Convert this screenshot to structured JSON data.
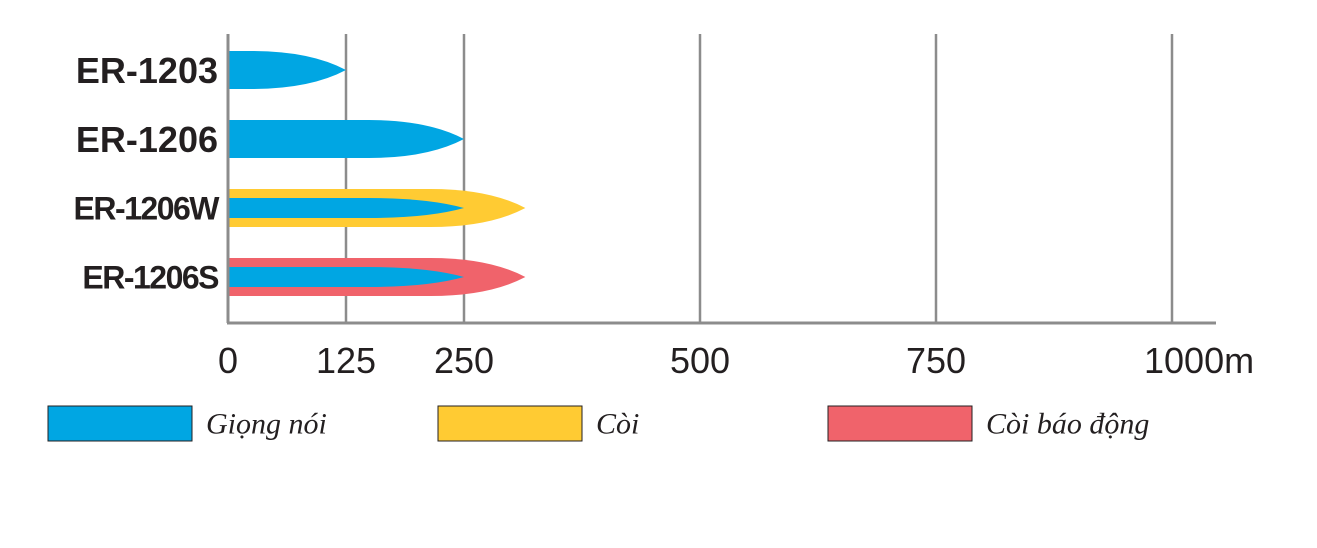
{
  "chart_data": {
    "type": "bar",
    "orientation": "horizontal",
    "categories": [
      "ER-1203",
      "ER-1206",
      "ER-1206W",
      "ER-1206S"
    ],
    "series": [
      {
        "name": "Giọng nói",
        "color": "#00a6e3",
        "values": [
          125,
          250,
          250,
          250
        ]
      },
      {
        "name": "Còi",
        "color": "#ffcb33",
        "values": [
          null,
          null,
          315,
          null
        ]
      },
      {
        "name": "Còi báo động",
        "color": "#f0636b",
        "values": [
          null,
          null,
          null,
          315
        ]
      }
    ],
    "x_ticks": [
      {
        "value": 0,
        "label": "0"
      },
      {
        "value": 125,
        "label": "125"
      },
      {
        "value": 250,
        "label": "250"
      },
      {
        "value": 500,
        "label": "500"
      },
      {
        "value": 750,
        "label": "750"
      },
      {
        "value": 1000,
        "label": "1000m"
      }
    ],
    "xlim": [
      0,
      1050
    ],
    "grid": true,
    "axis_color": "#8c8c8c",
    "bar_shape": "bullet-tip",
    "legend_position": "bottom",
    "title": "",
    "xlabel": "",
    "ylabel": ""
  }
}
